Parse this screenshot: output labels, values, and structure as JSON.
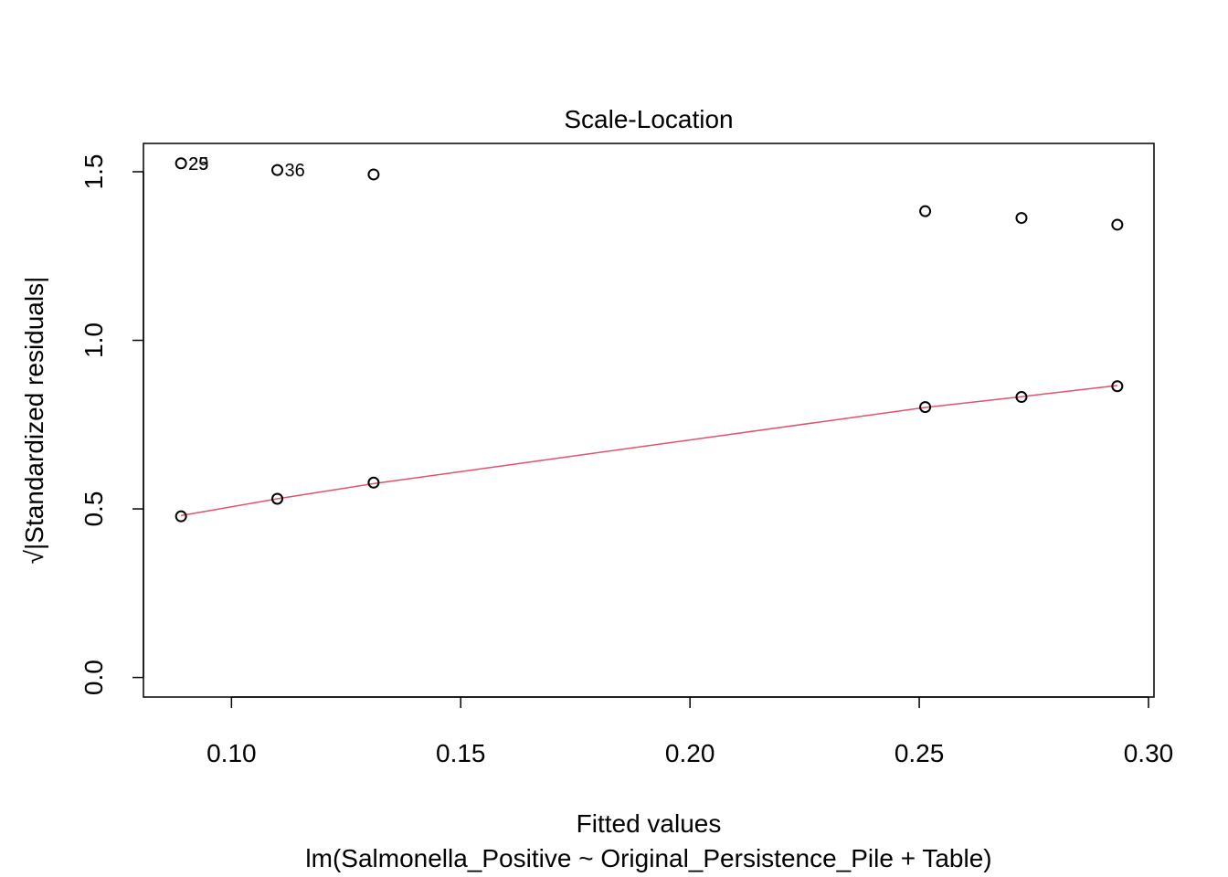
{
  "chart_data": {
    "type": "scatter",
    "title": "Scale-Location",
    "xlabel": "Fitted values",
    "subtitle": "lm(Salmonella_Positive ~ Original_Persistence_Pile + Table)",
    "ylabel": "√|Standardized residuals|",
    "xlim": [
      0.0808,
      0.3012
    ],
    "ylim": [
      -0.058,
      1.584
    ],
    "x_ticks": [
      0.1,
      0.15,
      0.2,
      0.25,
      0.3
    ],
    "x_tick_labels": [
      "0.10",
      "0.15",
      "0.20",
      "0.25",
      "0.30"
    ],
    "y_ticks": [
      0.0,
      0.5,
      1.0,
      1.5
    ],
    "y_tick_labels": [
      "0.0",
      "0.5",
      "1.0",
      "1.5"
    ],
    "grid": false,
    "points": [
      {
        "x": 0.089,
        "y": 1.525
      },
      {
        "x": 0.089,
        "y": 0.478
      },
      {
        "x": 0.11,
        "y": 1.505
      },
      {
        "x": 0.11,
        "y": 0.53
      },
      {
        "x": 0.131,
        "y": 1.492
      },
      {
        "x": 0.131,
        "y": 0.578
      },
      {
        "x": 0.2513,
        "y": 1.383
      },
      {
        "x": 0.2513,
        "y": 0.802
      },
      {
        "x": 0.2723,
        "y": 1.363
      },
      {
        "x": 0.2723,
        "y": 0.832
      },
      {
        "x": 0.2932,
        "y": 1.343
      },
      {
        "x": 0.2932,
        "y": 0.864
      }
    ],
    "point_labels": [
      {
        "x": 0.089,
        "y": 1.525,
        "text": "25"
      },
      {
        "x": 0.089,
        "y": 1.525,
        "text": "29"
      },
      {
        "x": 0.11,
        "y": 1.505,
        "text": "36"
      }
    ],
    "smoother": {
      "color": "#DF536B",
      "points": [
        {
          "x": 0.089,
          "y": 0.48
        },
        {
          "x": 0.11,
          "y": 0.53
        },
        {
          "x": 0.131,
          "y": 0.575
        },
        {
          "x": 0.2513,
          "y": 0.801
        },
        {
          "x": 0.2723,
          "y": 0.833
        },
        {
          "x": 0.2932,
          "y": 0.866
        }
      ]
    }
  }
}
